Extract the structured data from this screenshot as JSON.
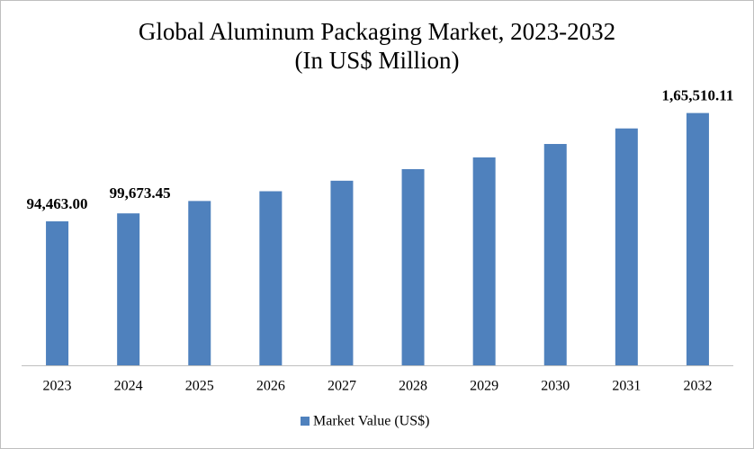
{
  "chart_data": {
    "type": "bar",
    "title": "Global Aluminum Packaging Market, 2023-2032",
    "subtitle": "(In US$ Million)",
    "categories": [
      "2023",
      "2024",
      "2025",
      "2026",
      "2027",
      "2028",
      "2029",
      "2030",
      "2031",
      "2032"
    ],
    "series": [
      {
        "name": "Market Value (US$)",
        "color": "#4f81bd",
        "values": [
          94463.0,
          99673.45,
          107800,
          114200,
          121100,
          128700,
          136400,
          145200,
          155400,
          165510.11
        ],
        "value_labels": [
          "94,463.00",
          "99,673.45",
          null,
          null,
          null,
          null,
          null,
          null,
          null,
          "1,65,510.11"
        ]
      }
    ],
    "ylim": [
      0,
      170000
    ]
  }
}
